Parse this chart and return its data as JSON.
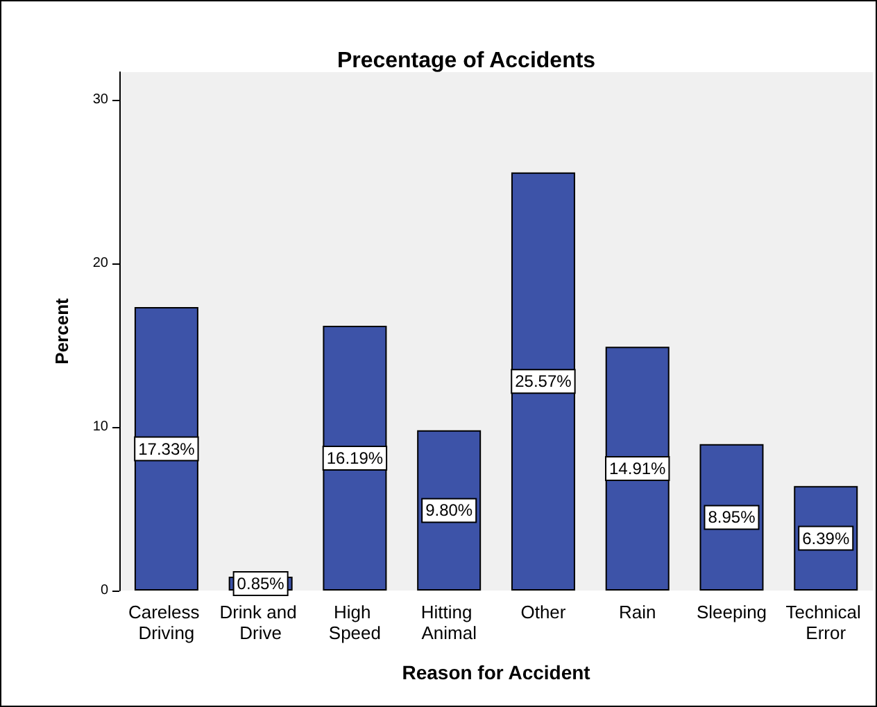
{
  "chart_data": {
    "type": "bar",
    "title": "Precentage of Accidents",
    "xlabel": "Reason for Accident",
    "ylabel": "Percent",
    "categories": [
      "Careless Driving",
      "Drink and Drive",
      "High Speed",
      "Hitting Animal",
      "Other",
      "Rain",
      "Sleeping",
      "Technical Error"
    ],
    "values": [
      17.33,
      0.85,
      16.19,
      9.8,
      25.57,
      14.91,
      8.95,
      6.39
    ],
    "value_labels": [
      "17.33%",
      "0.85%",
      "16.19%",
      "9.80%",
      "25.57%",
      "14.91%",
      "8.95%",
      "6.39%"
    ],
    "color": "#3d53a8",
    "ylim": [
      0,
      31.7
    ],
    "yticks": [
      0,
      10,
      20,
      30
    ],
    "grid": false
  }
}
